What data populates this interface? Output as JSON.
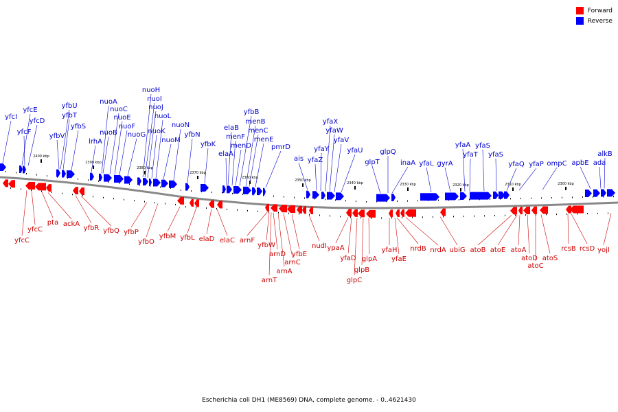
{
  "legend": {
    "forward_label": "Forward",
    "reverse_label": "Reverse",
    "forward_color": "#ff0000",
    "reverse_color": "#0000ff"
  },
  "caption": "Escherichia coli DH1 (ME8569) DNA, complete genome. - 0..4621430",
  "colors": {
    "forward_label": "#cc0000",
    "reverse_label": "#0000cc",
    "backbone": "#888888"
  },
  "position_markers": [
    {
      "label": "2400 kbp",
      "pos": 2400
    },
    {
      "label": "2390 kbp",
      "pos": 2390
    },
    {
      "label": "2380 kbp",
      "pos": 2380
    },
    {
      "label": "2370 kbp",
      "pos": 2370
    },
    {
      "label": "2360 kbp",
      "pos": 2360
    },
    {
      "label": "2350 kbp",
      "pos": 2350
    },
    {
      "label": "2340 kbp",
      "pos": 2340
    },
    {
      "label": "2330 kbp",
      "pos": 2330
    },
    {
      "label": "2320 kbp",
      "pos": 2320
    },
    {
      "label": "2310 kbp",
      "pos": 2310
    },
    {
      "label": "2300 kbp",
      "pos": 2300
    }
  ],
  "reverse_genes": [
    "yfcI",
    "yfcE",
    "yfcF",
    "yfcD",
    "yfbV",
    "yfbU",
    "yfbT",
    "yfbS",
    "lrhA",
    "nuoB",
    "nuoA",
    "nuoC",
    "nuoE",
    "nuoF",
    "nuoG",
    "nuoH",
    "nuoI",
    "nuoJ",
    "nuoK",
    "nuoL",
    "nuoM",
    "nuoN",
    "yfbN",
    "yfbK",
    "elaA",
    "elaB",
    "menF",
    "menD",
    "yfbB",
    "menB",
    "menC",
    "menE",
    "pmrD",
    "ais",
    "yfaZ",
    "yfaY",
    "yfaX",
    "yfaW",
    "yfaV",
    "yfaU",
    "glpT",
    "glpQ",
    "inaA",
    "yfaL",
    "gyrA",
    "yfaA",
    "yfaT",
    "yfaS",
    "yfaS",
    "yfaQ",
    "yfaP",
    "ompC",
    "apbE",
    "ada",
    "alkB"
  ],
  "forward_genes": [
    "yfcC",
    "yfcC",
    "pta",
    "ackA",
    "yfbR",
    "yfbQ",
    "yfbP",
    "yfbO",
    "yfbM",
    "yfbL",
    "elaD",
    "elaC",
    "arnF",
    "yfbW",
    "arnT",
    "arnD",
    "arnA",
    "arnC",
    "yfbE",
    "nudI",
    "ypaA",
    "yfaD",
    "glpC",
    "glpB",
    "glpA",
    "yfaH",
    "yfaE",
    "nrdB",
    "nrdA",
    "ubiG",
    "atoB",
    "atoE",
    "atoA",
    "atoD",
    "atoC",
    "atoS",
    "rcsB",
    "rcsD",
    "yojI"
  ]
}
